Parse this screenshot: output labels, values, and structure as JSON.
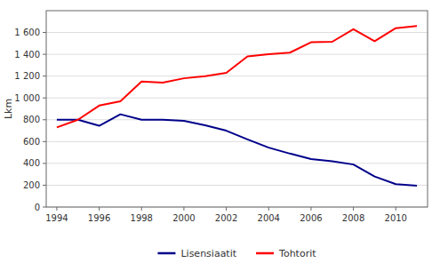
{
  "chart_data": {
    "type": "line",
    "y_label": "Lkm",
    "x": [
      1994,
      1995,
      1996,
      1997,
      1998,
      1999,
      2000,
      2001,
      2002,
      2003,
      2004,
      2005,
      2006,
      2007,
      2008,
      2009,
      2010,
      2011
    ],
    "series": [
      {
        "name": "Lisensiaatit",
        "color": "#00008B",
        "values": [
          800,
          800,
          745,
          850,
          800,
          800,
          790,
          750,
          700,
          620,
          545,
          490,
          440,
          420,
          390,
          280,
          210,
          195
        ]
      },
      {
        "name": "Tohtorit",
        "color": "#FF0000",
        "values": [
          730,
          800,
          930,
          970,
          1150,
          1140,
          1180,
          1200,
          1230,
          1380,
          1400,
          1415,
          1510,
          1515,
          1630,
          1520,
          1640,
          1660
        ]
      }
    ],
    "xlim": [
      1993.5,
      2011.5
    ],
    "xticks": [
      1994,
      1996,
      1998,
      2000,
      2002,
      2004,
      2006,
      2008,
      2010
    ],
    "ylim": [
      0,
      1800
    ],
    "yticks": [
      0,
      200,
      400,
      600,
      800,
      {
        "value": 1000,
        "label": "1 000"
      },
      {
        "value": 1200,
        "label": "1 200"
      },
      {
        "value": 1400,
        "label": "1 400"
      },
      {
        "value": 1600,
        "label": "1 600"
      }
    ],
    "grid": true,
    "legend": "bottom"
  }
}
